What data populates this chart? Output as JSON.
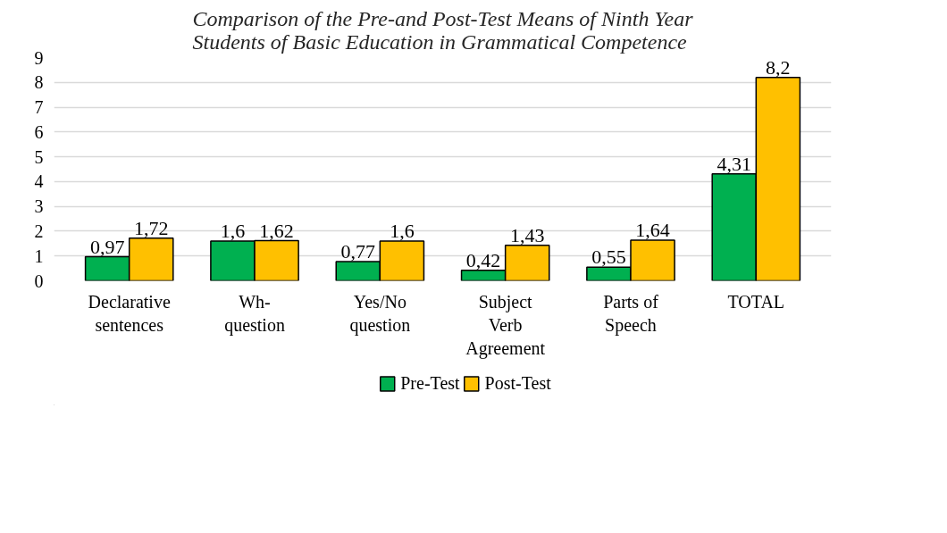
{
  "chart_data": {
    "type": "bar",
    "title": "Comparison of the Pre-and Post-Test Means of Ninth Year\nStudents of Basic Education in Grammatical Competence",
    "categories": [
      "Declarative\nsentences",
      "Wh-\nquestion",
      "Yes/No\nquestion",
      "Subject\nVerb\nAgreement",
      "Parts of\nSpeech",
      "TOTAL"
    ],
    "series": [
      {
        "name": "Pre-Test",
        "color": "#00b050",
        "values": [
          0.97,
          1.6,
          0.77,
          0.42,
          0.55,
          4.31
        ],
        "value_labels": [
          "0,97",
          "1,6",
          "0,77",
          "0,42",
          "0,55",
          "4,31"
        ]
      },
      {
        "name": "Post-Test",
        "color": "#ffc000",
        "values": [
          1.72,
          1.62,
          1.6,
          1.43,
          1.64,
          8.2
        ],
        "value_labels": [
          "1,72",
          "1,62",
          "1,6",
          "1,43",
          "1,64",
          "8,2"
        ]
      }
    ],
    "ylim": [
      0,
      9
    ],
    "yticks": [
      0,
      1,
      2,
      3,
      4,
      5,
      6,
      7,
      8,
      9
    ],
    "grid": "y",
    "legend": "bottom"
  }
}
